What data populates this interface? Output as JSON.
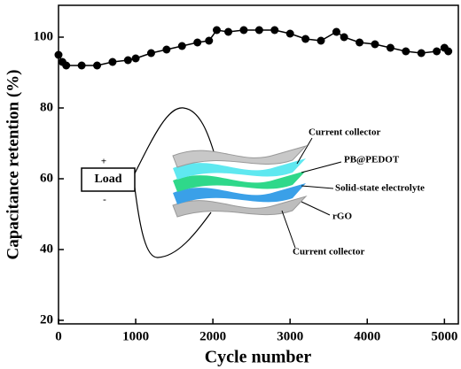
{
  "chart_data": {
    "type": "line",
    "x_label": "Cycle number",
    "y_label": "Capacitance retention (%)",
    "x": [
      0,
      50,
      100,
      300,
      500,
      700,
      900,
      1000,
      1200,
      1400,
      1600,
      1800,
      1950,
      2050,
      2200,
      2400,
      2600,
      2800,
      3000,
      3200,
      3400,
      3600,
      3700,
      3900,
      4100,
      4300,
      4500,
      4700,
      4900,
      5000,
      5050
    ],
    "series": [
      {
        "color": "#000000",
        "values": [
          95,
          93,
          92,
          92,
          92,
          93,
          93.5,
          94,
          95.5,
          96.5,
          97.5,
          98.5,
          99,
          102,
          101.5,
          102,
          102,
          102,
          101,
          99.5,
          99,
          101.5,
          100,
          98.5,
          98,
          97,
          96,
          95.5,
          96,
          97,
          96
        ]
      }
    ],
    "xlim": [
      0,
      5180
    ],
    "ylim": [
      19,
      109
    ],
    "xticks": [
      0,
      1000,
      2000,
      3000,
      4000,
      5000
    ],
    "yticks": [
      20,
      40,
      60,
      80,
      100
    ],
    "annotations": [
      "Load",
      "+",
      "-",
      "Current collector",
      "PB@PEDOT",
      "Solid-state electrolyte",
      "rGO",
      "Current collector"
    ]
  }
}
